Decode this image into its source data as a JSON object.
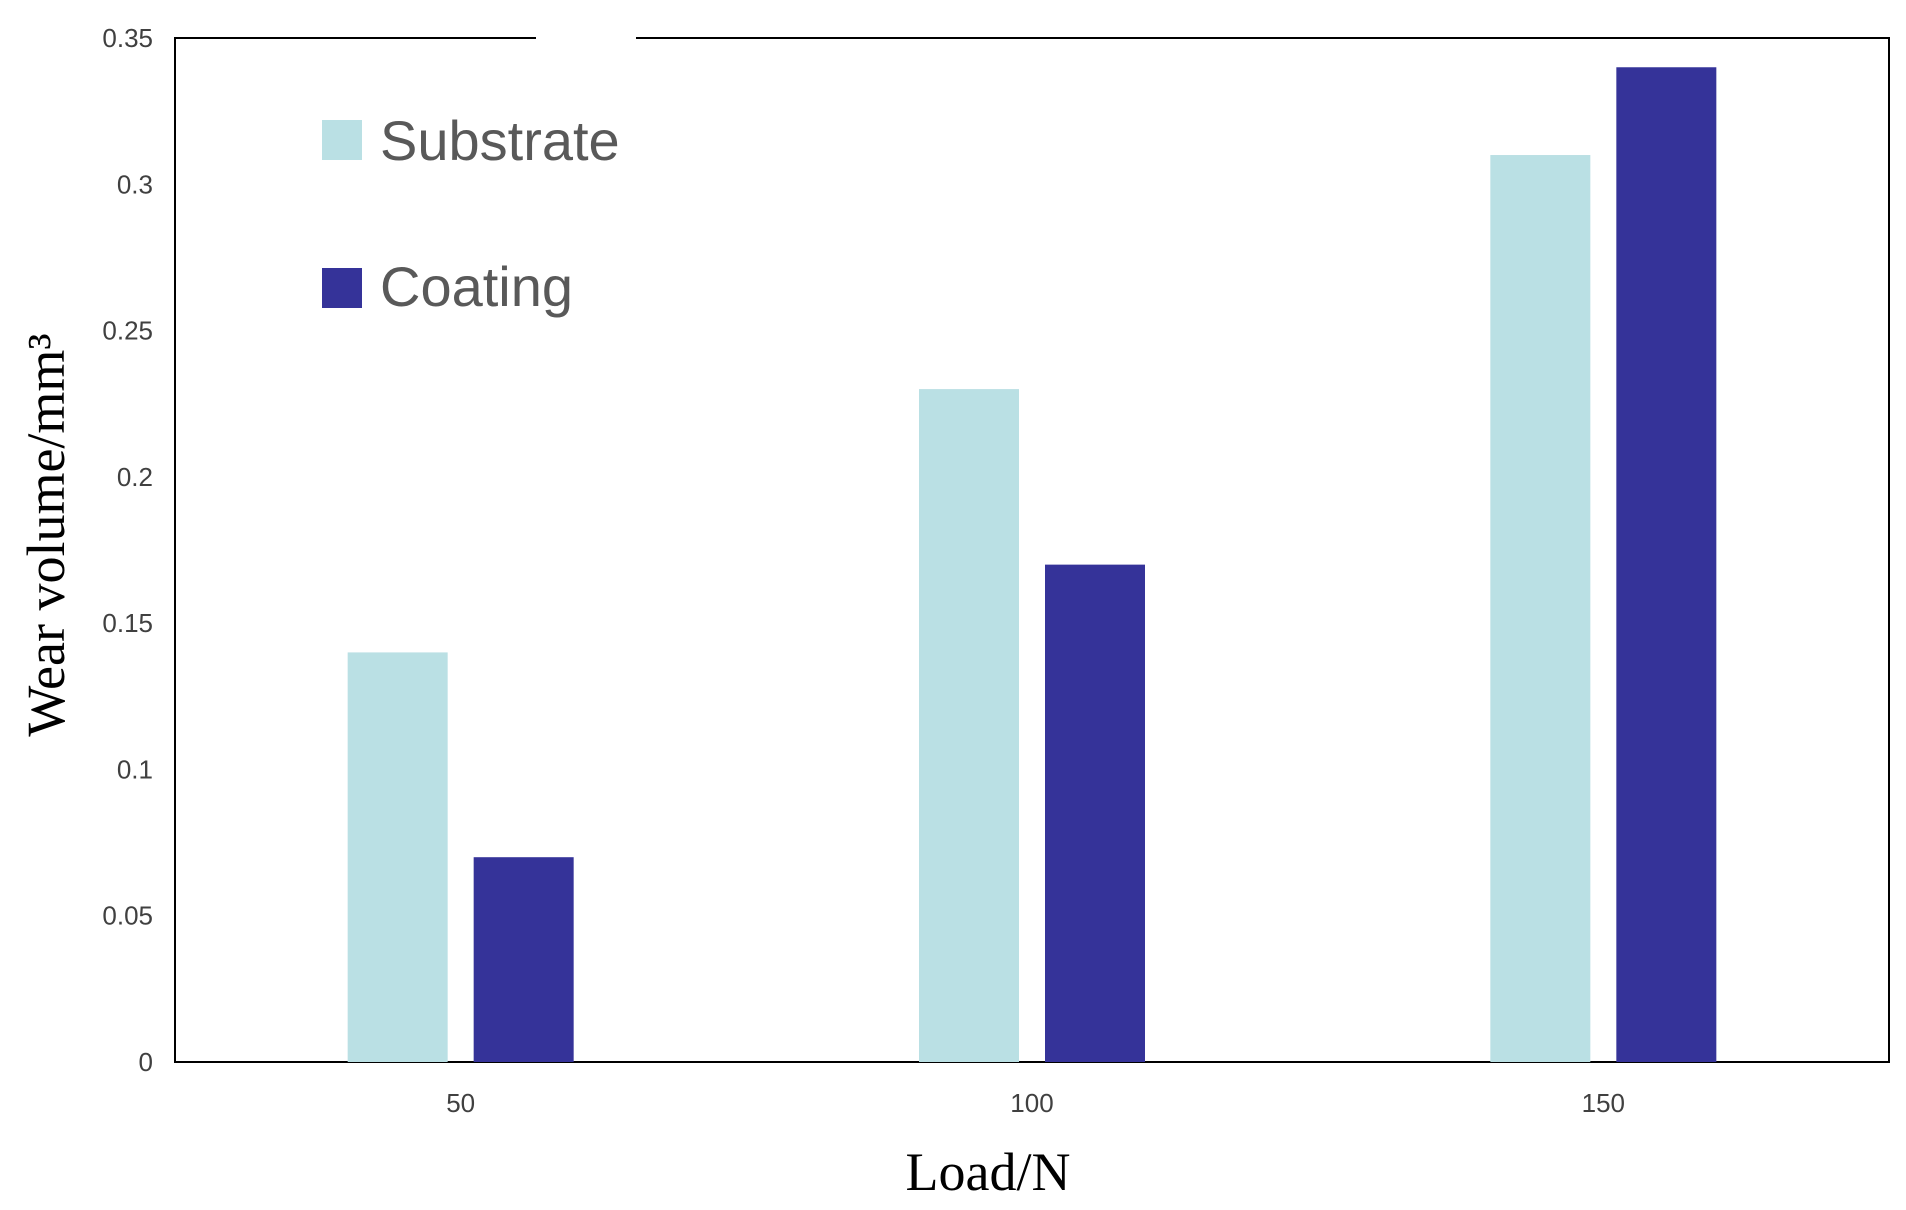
{
  "chart_data": {
    "type": "bar",
    "categories": [
      "50",
      "100",
      "150"
    ],
    "series": [
      {
        "name": "Substrate",
        "values": [
          0.14,
          0.23,
          0.31
        ],
        "color": "#bae0e4"
      },
      {
        "name": "Coating",
        "values": [
          0.07,
          0.17,
          0.34
        ],
        "color": "#353399"
      }
    ],
    "title": "",
    "xlabel": "Load/N",
    "ylabel": "Wear volume/mm³",
    "ylim": [
      0,
      0.35
    ],
    "yticks": [
      "0",
      "0.05",
      "0.1",
      "0.15",
      "0.2",
      "0.25",
      "0.3",
      "0.35"
    ],
    "grid": false,
    "legend_position": "top-left"
  }
}
